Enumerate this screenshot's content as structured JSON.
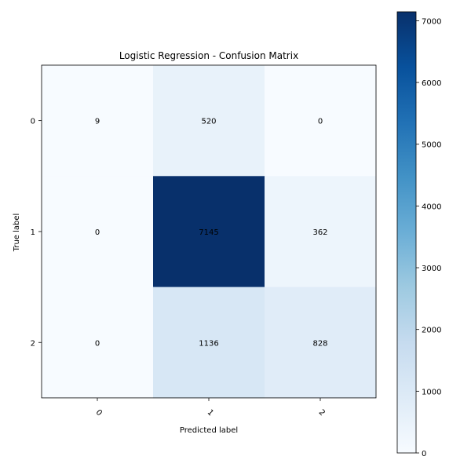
{
  "chart_data": {
    "type": "heatmap",
    "title": "Logistic Regression - Confusion Matrix",
    "xlabel": "Predicted label",
    "ylabel": "True label",
    "x_categories": [
      "0",
      "1",
      "2"
    ],
    "y_categories": [
      "0",
      "1",
      "2"
    ],
    "values": [
      [
        9,
        520,
        0
      ],
      [
        0,
        7145,
        362
      ],
      [
        0,
        1136,
        828
      ]
    ],
    "colormap": "Blues",
    "colorbar": {
      "vmin": 0,
      "vmax": 7145,
      "ticks": [
        0,
        1000,
        2000,
        3000,
        4000,
        5000,
        6000,
        7000
      ]
    },
    "x_tick_rotation": 45
  }
}
